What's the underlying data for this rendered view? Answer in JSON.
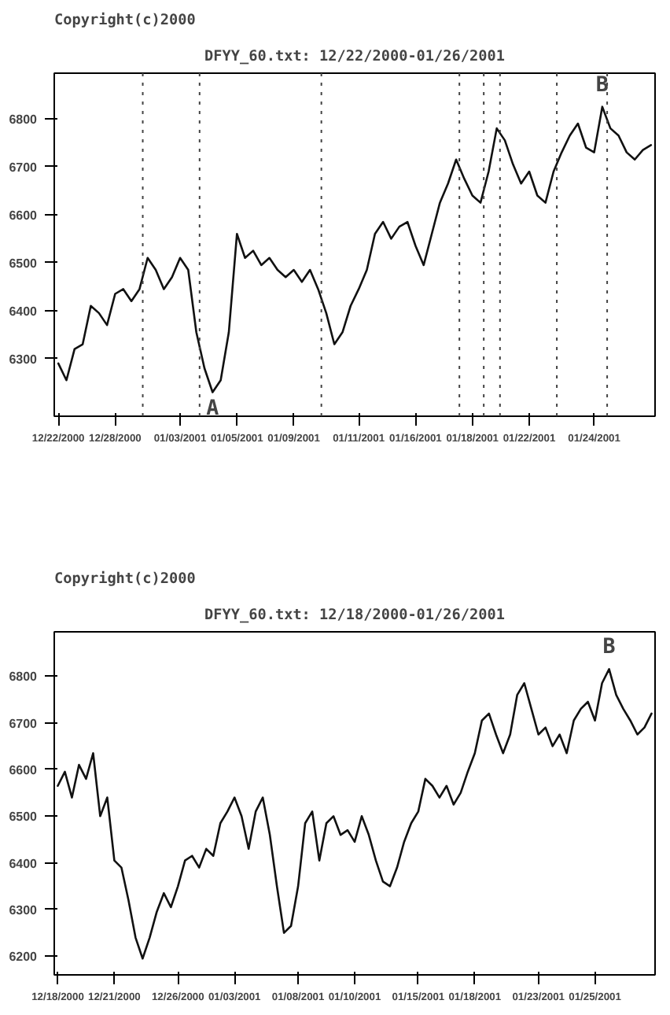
{
  "chart_data": [
    {
      "type": "line",
      "title": "DFYY_60.txt: 12/22/2000-01/26/2001",
      "annotations": [
        "Copyright(c)2000",
        {
          "text": "A",
          "y": 6230
        },
        {
          "text": "B",
          "y": 6825
        }
      ],
      "categories": [
        "12/22/2000",
        null,
        null,
        null,
        null,
        null,
        null,
        "12/28/2000",
        null,
        null,
        null,
        null,
        null,
        null,
        null,
        "01/03/2001",
        null,
        null,
        null,
        null,
        null,
        null,
        "01/05/2001",
        null,
        null,
        null,
        null,
        null,
        null,
        "01/09/2001",
        null,
        null,
        null,
        null,
        null,
        null,
        null,
        "01/11/2001",
        null,
        null,
        null,
        null,
        null,
        null,
        "01/16/2001",
        null,
        null,
        null,
        null,
        null,
        null,
        "01/18/2001",
        null,
        null,
        null,
        null,
        null,
        null,
        "01/22/2001",
        null,
        null,
        null,
        null,
        null,
        null,
        null,
        "01/24/2001",
        null,
        null,
        null,
        null,
        null,
        null,
        null
      ],
      "series": [
        {
          "color": "#111111",
          "values": [
            6290,
            6255,
            6320,
            6330,
            6410,
            6395,
            6370,
            6435,
            6445,
            6420,
            6445,
            6510,
            6485,
            6445,
            6470,
            6510,
            6485,
            6355,
            6280,
            6230,
            6255,
            6355,
            6560,
            6510,
            6525,
            6495,
            6510,
            6485,
            6470,
            6485,
            6460,
            6485,
            6445,
            6395,
            6330,
            6355,
            6410,
            6445,
            6485,
            6560,
            6585,
            6550,
            6575,
            6585,
            6535,
            6495,
            6560,
            6625,
            6665,
            6715,
            6675,
            6640,
            6625,
            6690,
            6780,
            6755,
            6705,
            6665,
            6690,
            6640,
            6625,
            6690,
            6730,
            6765,
            6790,
            6740,
            6730,
            6825,
            6780,
            6765,
            6730,
            6715,
            6735,
            6745
          ]
        }
      ],
      "ylim": [
        6180,
        6895
      ],
      "yticks": [
        6300,
        6400,
        6500,
        6600,
        6700,
        6800
      ]
    },
    {
      "type": "line",
      "title": "DFYY_60.txt: 12/18/2000-01/26/2001",
      "annotations": [
        "Copyright(c)2000",
        {
          "text": "B",
          "y": 6815
        }
      ],
      "categories": [
        "12/18/2000",
        null,
        null,
        null,
        null,
        null,
        null,
        null,
        "12/21/2000",
        null,
        null,
        null,
        null,
        null,
        null,
        null,
        null,
        "12/26/2000",
        null,
        null,
        null,
        null,
        null,
        null,
        null,
        "01/03/2001",
        null,
        null,
        null,
        null,
        null,
        null,
        null,
        null,
        "01/08/2001",
        null,
        null,
        null,
        null,
        null,
        null,
        null,
        "01/10/2001",
        null,
        null,
        null,
        null,
        null,
        null,
        null,
        null,
        "01/15/2001",
        null,
        null,
        null,
        null,
        null,
        null,
        null,
        "01/18/2001",
        null,
        null,
        null,
        null,
        null,
        null,
        null,
        null,
        "01/23/2001",
        null,
        null,
        null,
        null,
        null,
        null,
        null,
        "01/25/2001",
        null,
        null,
        null,
        null,
        null,
        null,
        null,
        null
      ],
      "series": [
        {
          "color": "#111111",
          "values": [
            6565,
            6595,
            6540,
            6610,
            6580,
            6635,
            6500,
            6540,
            6405,
            6390,
            6320,
            6240,
            6195,
            6240,
            6295,
            6335,
            6305,
            6350,
            6405,
            6415,
            6390,
            6430,
            6415,
            6485,
            6510,
            6540,
            6500,
            6430,
            6510,
            6540,
            6460,
            6350,
            6250,
            6265,
            6350,
            6485,
            6510,
            6405,
            6485,
            6500,
            6460,
            6470,
            6445,
            6500,
            6460,
            6405,
            6360,
            6350,
            6390,
            6445,
            6485,
            6510,
            6580,
            6565,
            6540,
            6565,
            6525,
            6550,
            6595,
            6635,
            6705,
            6720,
            6675,
            6635,
            6675,
            6760,
            6785,
            6730,
            6675,
            6690,
            6650,
            6675,
            6635,
            6705,
            6730,
            6745,
            6705,
            6785,
            6815,
            6760,
            6730,
            6705,
            6675,
            6690,
            6720
          ]
        }
      ],
      "ylim": [
        6160,
        6895
      ],
      "yticks": [
        6200,
        6300,
        6400,
        6500,
        6600,
        6700,
        6800
      ],
      "grid": false
    }
  ]
}
